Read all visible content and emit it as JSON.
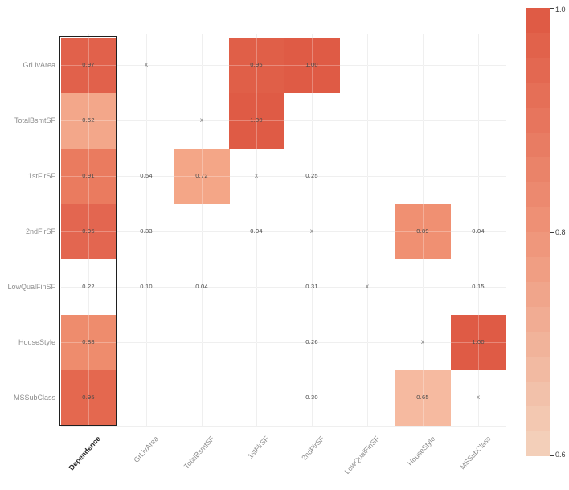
{
  "chart_data": {
    "type": "heatmap",
    "title": "",
    "x_axis_labels": [
      "Dependence",
      "GrLivArea",
      "TotalBsmtSF",
      "1stFlrSF",
      "2ndFlrSF",
      "LowQualFinSF",
      "HouseStyle",
      "MSSubClass"
    ],
    "y_axis_labels": [
      "GrLivArea",
      "TotalBsmtSF",
      "1stFlrSF",
      "2ndFlrSF",
      "LowQualFinSF",
      "HouseStyle",
      "MSSubClass"
    ],
    "diagonal_marker": "x",
    "dependence_column": [
      {
        "row": "GrLivArea",
        "value": "0.97",
        "filled": true,
        "color": "#e1614b"
      },
      {
        "row": "TotalBsmtSF",
        "value": "0.52",
        "filled": true,
        "color": "#f3a78a"
      },
      {
        "row": "1stFlrSF",
        "value": "0.91",
        "filled": true,
        "color": "#ea7b5f"
      },
      {
        "row": "2ndFlrSF",
        "value": "0.96",
        "filled": true,
        "color": "#e36650"
      },
      {
        "row": "LowQualFinSF",
        "value": "0.22",
        "filled": false,
        "color": ""
      },
      {
        "row": "HouseStyle",
        "value": "0.88",
        "filled": true,
        "color": "#ee8c6d"
      },
      {
        "row": "MSSubClass",
        "value": "0.95",
        "filled": true,
        "color": "#e4684f"
      }
    ],
    "matrix_cells": [
      {
        "row": "GrLivArea",
        "col": "1stFlrSF",
        "value": "0.95",
        "filled": true,
        "color": "#e05f48"
      },
      {
        "row": "GrLivArea",
        "col": "2ndFlrSF",
        "value": "1.00",
        "filled": true,
        "color": "#df5b45"
      },
      {
        "row": "TotalBsmtSF",
        "col": "1stFlrSF",
        "value": "1.00",
        "filled": true,
        "color": "#df5b45"
      },
      {
        "row": "1stFlrSF",
        "col": "GrLivArea",
        "value": "0.54",
        "filled": false,
        "color": ""
      },
      {
        "row": "1stFlrSF",
        "col": "TotalBsmtSF",
        "value": "0.72",
        "filled": true,
        "color": "#f4a687"
      },
      {
        "row": "1stFlrSF",
        "col": "2ndFlrSF",
        "value": "0.25",
        "filled": false,
        "color": ""
      },
      {
        "row": "2ndFlrSF",
        "col": "GrLivArea",
        "value": "0.33",
        "filled": false,
        "color": ""
      },
      {
        "row": "2ndFlrSF",
        "col": "1stFlrSF",
        "value": "0.04",
        "filled": false,
        "color": ""
      },
      {
        "row": "2ndFlrSF",
        "col": "HouseStyle",
        "value": "0.89",
        "filled": true,
        "color": "#f09072"
      },
      {
        "row": "2ndFlrSF",
        "col": "MSSubClass",
        "value": "0.04",
        "filled": false,
        "color": ""
      },
      {
        "row": "LowQualFinSF",
        "col": "GrLivArea",
        "value": "0.10",
        "filled": false,
        "color": ""
      },
      {
        "row": "LowQualFinSF",
        "col": "TotalBsmtSF",
        "value": "0.04",
        "filled": false,
        "color": ""
      },
      {
        "row": "LowQualFinSF",
        "col": "2ndFlrSF",
        "value": "0.31",
        "filled": false,
        "color": ""
      },
      {
        "row": "LowQualFinSF",
        "col": "MSSubClass",
        "value": "0.15",
        "filled": false,
        "color": ""
      },
      {
        "row": "HouseStyle",
        "col": "2ndFlrSF",
        "value": "0.26",
        "filled": false,
        "color": ""
      },
      {
        "row": "HouseStyle",
        "col": "MSSubClass",
        "value": "1.00",
        "filled": true,
        "color": "#df5b45"
      },
      {
        "row": "MSSubClass",
        "col": "2ndFlrSF",
        "value": "0.30",
        "filled": false,
        "color": ""
      },
      {
        "row": "MSSubClass",
        "col": "HouseStyle",
        "value": "0.65",
        "filled": true,
        "color": "#f6baa0"
      }
    ],
    "legend": {
      "tick_labels": [
        "1.0",
        "0.8",
        "0.6"
      ],
      "color_stops": [
        "#df5b45",
        "#ef9378",
        "#f3cfb9"
      ],
      "steps": 18,
      "range": [
        0.6,
        1.0
      ]
    },
    "colors": {
      "value_text": "#4a4a4a",
      "marker_text": "#757575",
      "axis_label": "#8e8e8e",
      "dependence_label": "#2b2b2b",
      "gridline": "#e9e9e9",
      "box_border": "#1f1f1f",
      "background": "#ffffff"
    }
  }
}
